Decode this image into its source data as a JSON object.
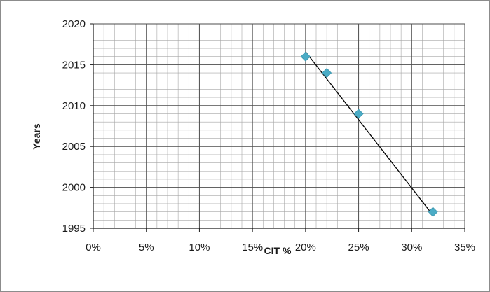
{
  "chart_data": {
    "type": "scatter",
    "title": "",
    "xlabel": "CIT %",
    "ylabel": "Years",
    "xlim": [
      0,
      35
    ],
    "ylim": [
      1995,
      2020
    ],
    "x_ticks": [
      0,
      5,
      10,
      15,
      20,
      25,
      30,
      35
    ],
    "x_tick_labels": [
      "0%",
      "5%",
      "10%",
      "15%",
      "20%",
      "25%",
      "30%",
      "35%"
    ],
    "y_ticks": [
      1995,
      2000,
      2005,
      2010,
      2015,
      2020
    ],
    "y_tick_labels": [
      "1995",
      "2000",
      "2005",
      "2010",
      "2015",
      "2020"
    ],
    "grid": true,
    "minor_grid": true,
    "marker": "diamond",
    "marker_color": "#4bacc6",
    "trendline_color": "#000000",
    "series": [
      {
        "points": [
          {
            "x": 20,
            "y": 2016
          },
          {
            "x": 22,
            "y": 2014
          },
          {
            "x": 25,
            "y": 2009
          },
          {
            "x": 32,
            "y": 1997
          }
        ]
      }
    ],
    "trendline": {
      "x": [
        20,
        32
      ],
      "y": [
        2016.6,
        1996.6
      ]
    }
  }
}
